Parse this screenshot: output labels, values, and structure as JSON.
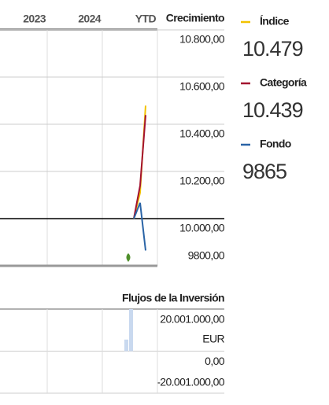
{
  "growth": {
    "title": "Crecimiento",
    "periods": [
      "2023",
      "2024",
      "YTD"
    ],
    "ylim": [
      9800,
      10800
    ],
    "yticks": [
      {
        "value": 10800,
        "label": "10.800,00"
      },
      {
        "value": 10600,
        "label": "10.600,00"
      },
      {
        "value": 10400,
        "label": "10.400,00"
      },
      {
        "value": 10200,
        "label": "10.200,00"
      },
      {
        "value": 10000,
        "label": "10.000,00"
      },
      {
        "value": 9800,
        "label": "9800,00"
      }
    ],
    "baseline": 10000,
    "series": [
      {
        "name": "Índice",
        "color": "#f2c200",
        "values": [
          10000,
          10110,
          10479
        ],
        "last_value_label": "10.479"
      },
      {
        "name": "Categoría",
        "color": "#a3122f",
        "values": [
          10000,
          10140,
          10439
        ],
        "last_value_label": "10.439"
      },
      {
        "name": "Fondo",
        "color": "#2a64a6",
        "values": [
          10000,
          10067,
          9865
        ],
        "last_value_label": "9865"
      }
    ]
  },
  "flows": {
    "title": "Flujos de la Inversión",
    "unit": "EUR",
    "ylim": [
      -20001000,
      20001000
    ],
    "yticks": [
      {
        "value": 20001000,
        "label": "20.001.000,00"
      },
      {
        "value": 0,
        "label": "0,00"
      },
      {
        "value": -20001000,
        "label": "-20.001.000,00"
      }
    ],
    "values": [
      5500000,
      20001000
    ],
    "color": "#c9d9ef"
  }
}
